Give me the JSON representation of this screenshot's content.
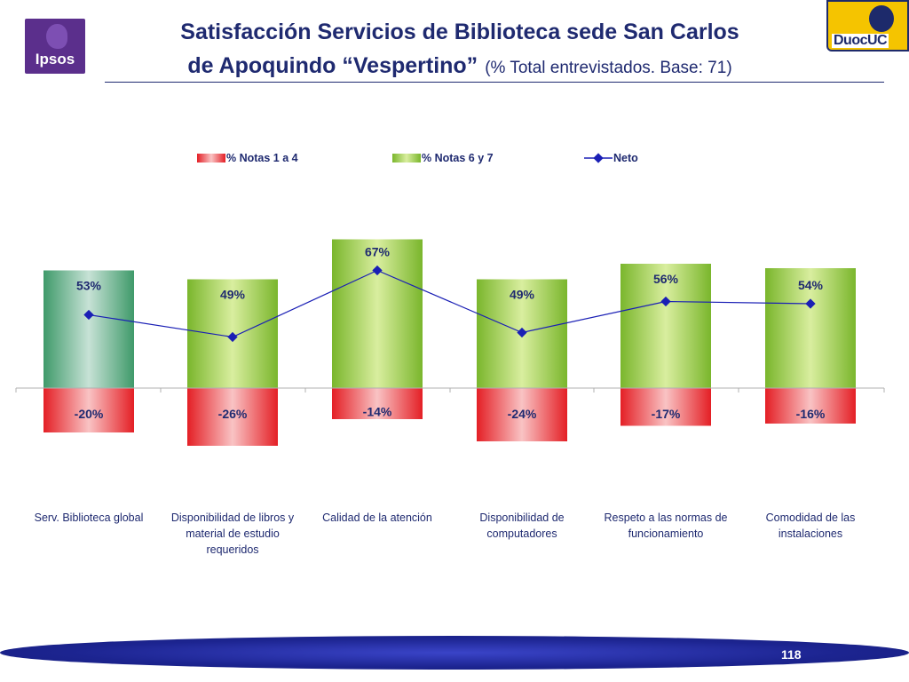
{
  "header": {
    "title_line1": "Satisfacción Servicios de Biblioteca sede San Carlos",
    "title_line2": "de Apoquindo “Vespertino”",
    "subtitle": "(% Total entrevistados. Base: 71)",
    "logo_left_text": "Ipsos",
    "logo_right_text": "DuocUC"
  },
  "footer": {
    "page_number": "118"
  },
  "colors": {
    "title": "#1f2a70",
    "green_bar": "#8cc63f",
    "green_bar_first": "#5aa57a",
    "red_bar": "#e8262b",
    "neto_line": "#1a1fb5",
    "footer_band": "#1c2490"
  },
  "chart_data": {
    "type": "bar",
    "categories": [
      "Serv. Biblioteca global",
      "Disponibilidad de libros y material de estudio requeridos",
      "Calidad de la atención",
      "Disponibilidad de computadores",
      "Respeto a las normas de funcionamiento",
      "Comodidad de las instalaciones"
    ],
    "category_lines": [
      [
        "Serv. Biblioteca global"
      ],
      [
        "Disponibilidad de libros y",
        "material de estudio",
        "requeridos"
      ],
      [
        "Calidad de la atención"
      ],
      [
        "Disponibilidad de",
        "computadores"
      ],
      [
        "Respeto a las normas de",
        "funcionamiento"
      ],
      [
        "Comodidad de las",
        "instalaciones"
      ]
    ],
    "series": [
      {
        "name": "% Notas 1 a 4",
        "kind": "bar",
        "values": [
          -20,
          -26,
          -14,
          -24,
          -17,
          -16
        ],
        "labels": [
          "-20%",
          "-26%",
          "-14%",
          "-24%",
          "-17%",
          "-16%"
        ]
      },
      {
        "name": "% Notas 6 y 7",
        "kind": "bar",
        "values": [
          53,
          49,
          67,
          49,
          56,
          54
        ],
        "labels": [
          "53%",
          "49%",
          "67%",
          "49%",
          "56%",
          "54%"
        ]
      },
      {
        "name": "Neto",
        "kind": "line",
        "values": [
          33,
          23,
          53,
          25,
          39,
          38
        ]
      }
    ],
    "legend_position": "top",
    "grid": false,
    "ylim": [
      -30,
      70
    ]
  }
}
